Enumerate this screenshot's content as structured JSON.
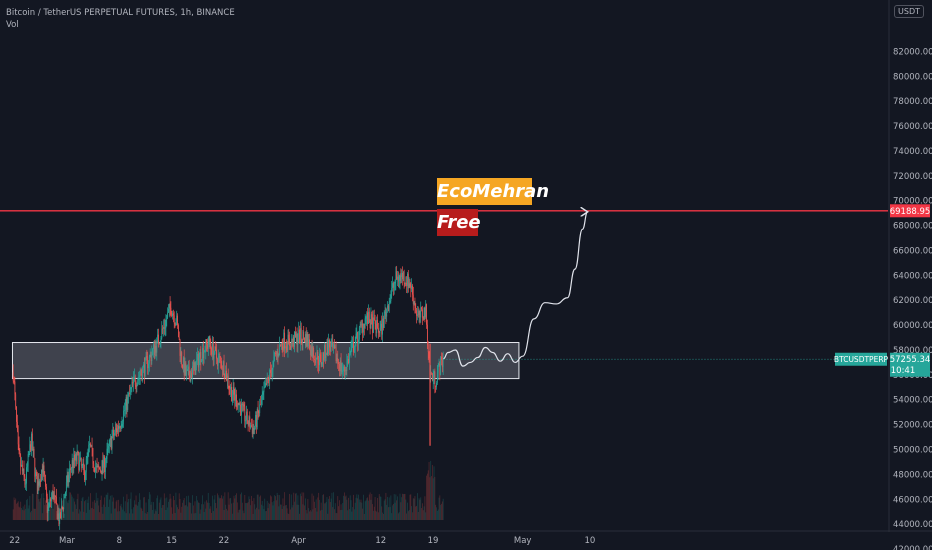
{
  "header": {
    "title": "Bitcoin / TetherUS PERPETUAL FUTURES, 1h, BINANCE",
    "vol_label": "Vol"
  },
  "currency_button": "USDT",
  "annotations": {
    "brand_tag": "EcoMehran",
    "free_tag": "Free"
  },
  "price_labels": {
    "resistance": "69188.95",
    "symbol": "BTCUSDTPERP",
    "current_price": "57255.34",
    "countdown": "10:41"
  },
  "colors": {
    "background": "#131722",
    "bull": "#26a69a",
    "bear": "#ef5350",
    "resistance_line": "#f23645",
    "zone_fill": "#b2b5be",
    "brand_tag": "#f5a623",
    "free_tag": "#b71c1c"
  },
  "chart_data": {
    "type": "line",
    "chart_style": "candlestick",
    "title": "Bitcoin / TetherUS PERPETUAL FUTURES, 1h, BINANCE",
    "ylabel": "",
    "xlabel": "",
    "y_scale": "linear",
    "grid": false,
    "ylim": [
      41000,
      83500
    ],
    "y_ticks": [
      42000,
      44000,
      46000,
      48000,
      50000,
      52000,
      54000,
      56000,
      58000,
      60000,
      62000,
      64000,
      66000,
      68000,
      70000,
      72000,
      74000,
      76000,
      78000,
      80000,
      82000
    ],
    "x_ticks": [
      "22",
      "Mar",
      "8",
      "15",
      "22",
      "Apr",
      "12",
      "19",
      "May",
      "10"
    ],
    "x_tick_days": [
      -7,
      0,
      7,
      14,
      21,
      31,
      42,
      49,
      61,
      70
    ],
    "x_unit": "days from Mar 1",
    "series": [
      {
        "type": "line",
        "points": [
          [
            -7.2,
            56200
          ],
          [
            -6.5,
            49500
          ],
          [
            -5.6,
            47200
          ],
          [
            -4.8,
            50800
          ],
          [
            -4.0,
            46900
          ],
          [
            -3.3,
            48700
          ],
          [
            -2.6,
            45100
          ],
          [
            -1.9,
            46500
          ],
          [
            -1.0,
            44200
          ],
          [
            -0.2,
            46700
          ],
          [
            0.6,
            48800
          ],
          [
            1.4,
            49300
          ],
          [
            2.3,
            48000
          ],
          [
            3.0,
            50200
          ],
          [
            4.0,
            48200
          ],
          [
            5.0,
            48800
          ],
          [
            6.0,
            50900
          ],
          [
            7.0,
            52000
          ],
          [
            8.0,
            53700
          ],
          [
            9.0,
            55500
          ],
          [
            10.0,
            56200
          ],
          [
            11.0,
            57300
          ],
          [
            12.0,
            58500
          ],
          [
            13.0,
            59900
          ],
          [
            13.9,
            61500
          ],
          [
            14.7,
            60200
          ],
          [
            15.3,
            57300
          ],
          [
            16.0,
            55900
          ],
          [
            17.0,
            56400
          ],
          [
            18.0,
            57800
          ],
          [
            19.0,
            58600
          ],
          [
            20.0,
            57400
          ],
          [
            21.0,
            56700
          ],
          [
            22.0,
            54600
          ],
          [
            22.9,
            53800
          ],
          [
            24.0,
            52400
          ],
          [
            25.0,
            51600
          ],
          [
            26.0,
            53700
          ],
          [
            27.0,
            55700
          ],
          [
            28.0,
            57600
          ],
          [
            29.0,
            58800
          ],
          [
            30.0,
            58500
          ],
          [
            31.0,
            59100
          ],
          [
            32.0,
            59000
          ],
          [
            33.0,
            57700
          ],
          [
            34.0,
            57100
          ],
          [
            35.0,
            58400
          ],
          [
            36.0,
            57500
          ],
          [
            37.0,
            56200
          ],
          [
            38.0,
            57800
          ],
          [
            39.0,
            59200
          ],
          [
            40.0,
            60600
          ],
          [
            41.0,
            60000
          ],
          [
            42.0,
            59500
          ],
          [
            43.0,
            61800
          ],
          [
            44.0,
            63700
          ],
          [
            45.0,
            64000
          ],
          [
            46.0,
            63200
          ],
          [
            47.0,
            60500
          ],
          [
            48.0,
            61200
          ],
          [
            48.6,
            56000
          ],
          [
            49.3,
            55600
          ],
          [
            49.8,
            56500
          ],
          [
            50.4,
            57300
          ]
        ]
      },
      {
        "type": "line",
        "name": "",
        "points": [
          [
            50.4,
            57300
          ],
          [
            51.0,
            57800
          ],
          [
            52.0,
            58000
          ],
          [
            53.0,
            56700
          ],
          [
            54.0,
            57000
          ],
          [
            55.0,
            57400
          ],
          [
            56.0,
            58200
          ],
          [
            57.0,
            57800
          ],
          [
            58.0,
            57100
          ],
          [
            59.0,
            57700
          ],
          [
            60.0,
            57000
          ],
          [
            61.0,
            57500
          ],
          [
            62.5,
            60500
          ],
          [
            64.0,
            61800
          ],
          [
            65.5,
            61700
          ],
          [
            67.0,
            62200
          ],
          [
            68.0,
            64500
          ],
          [
            69.0,
            67700
          ],
          [
            69.7,
            69100
          ]
        ]
      }
    ],
    "reference_lines": {
      "resistance_level": 69188.95,
      "current_price": 57255.34
    },
    "zone": {
      "x_range": [
        -7.3,
        60.5
      ],
      "y_range": [
        55700,
        58600
      ]
    }
  }
}
